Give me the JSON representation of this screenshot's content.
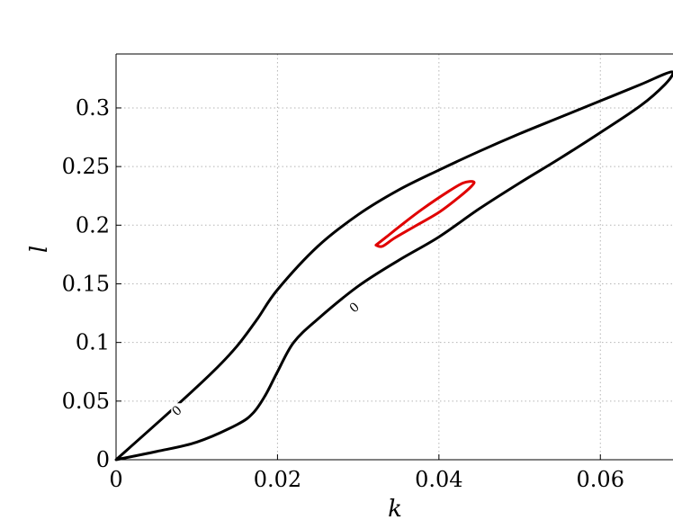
{
  "chart_data": {
    "type": "line",
    "title": "",
    "xlabel": "k",
    "ylabel": "l",
    "xlim": [
      0,
      0.069
    ],
    "ylim": [
      0,
      0.346
    ],
    "grid": true,
    "x_ticks": [
      "0",
      "0.02",
      "0.04",
      "0.06"
    ],
    "x_tick_values": [
      0,
      0.02,
      0.04,
      0.06
    ],
    "y_ticks": [
      "0",
      "0.05",
      "0.1",
      "0.15",
      "0.2",
      "0.25",
      "0.3"
    ],
    "y_tick_values": [
      0,
      0.05,
      0.1,
      0.15,
      0.2,
      0.25,
      0.3
    ],
    "series": [
      {
        "color": "#000000",
        "closed": true,
        "x": [
          0,
          0.007,
          0.012,
          0.015,
          0.0175,
          0.02,
          0.025,
          0.03,
          0.035,
          0.04,
          0.045,
          0.05,
          0.055,
          0.06,
          0.065,
          0.068,
          0.069,
          0.068,
          0.065,
          0.06,
          0.055,
          0.05,
          0.045,
          0.04,
          0.035,
          0.03,
          0.025,
          0.022,
          0.02,
          0.0185,
          0.017,
          0.015,
          0.01,
          0.005,
          0
        ],
        "y": [
          0,
          0.043,
          0.075,
          0.097,
          0.12,
          0.145,
          0.182,
          0.209,
          0.23,
          0.247,
          0.263,
          0.278,
          0.292,
          0.306,
          0.32,
          0.329,
          0.33,
          0.32,
          0.302,
          0.279,
          0.257,
          0.236,
          0.214,
          0.19,
          0.17,
          0.148,
          0.12,
          0.1,
          0.075,
          0.055,
          0.04,
          0.03,
          0.015,
          0.007,
          0
        ]
      },
      {
        "color": "#e00000",
        "closed": true,
        "x": [
          0.0322,
          0.0335,
          0.0355,
          0.038,
          0.041,
          0.043,
          0.0443,
          0.044,
          0.0425,
          0.04,
          0.037,
          0.0345,
          0.033,
          0.0322
        ],
        "y": [
          0.183,
          0.19,
          0.201,
          0.214,
          0.228,
          0.236,
          0.237,
          0.233,
          0.224,
          0.211,
          0.199,
          0.189,
          0.182,
          0.183
        ]
      }
    ],
    "annotations": [
      {
        "text": "0",
        "x": 0.0075,
        "y": 0.042
      },
      {
        "text": "0",
        "x": 0.0295,
        "y": 0.13
      }
    ]
  }
}
